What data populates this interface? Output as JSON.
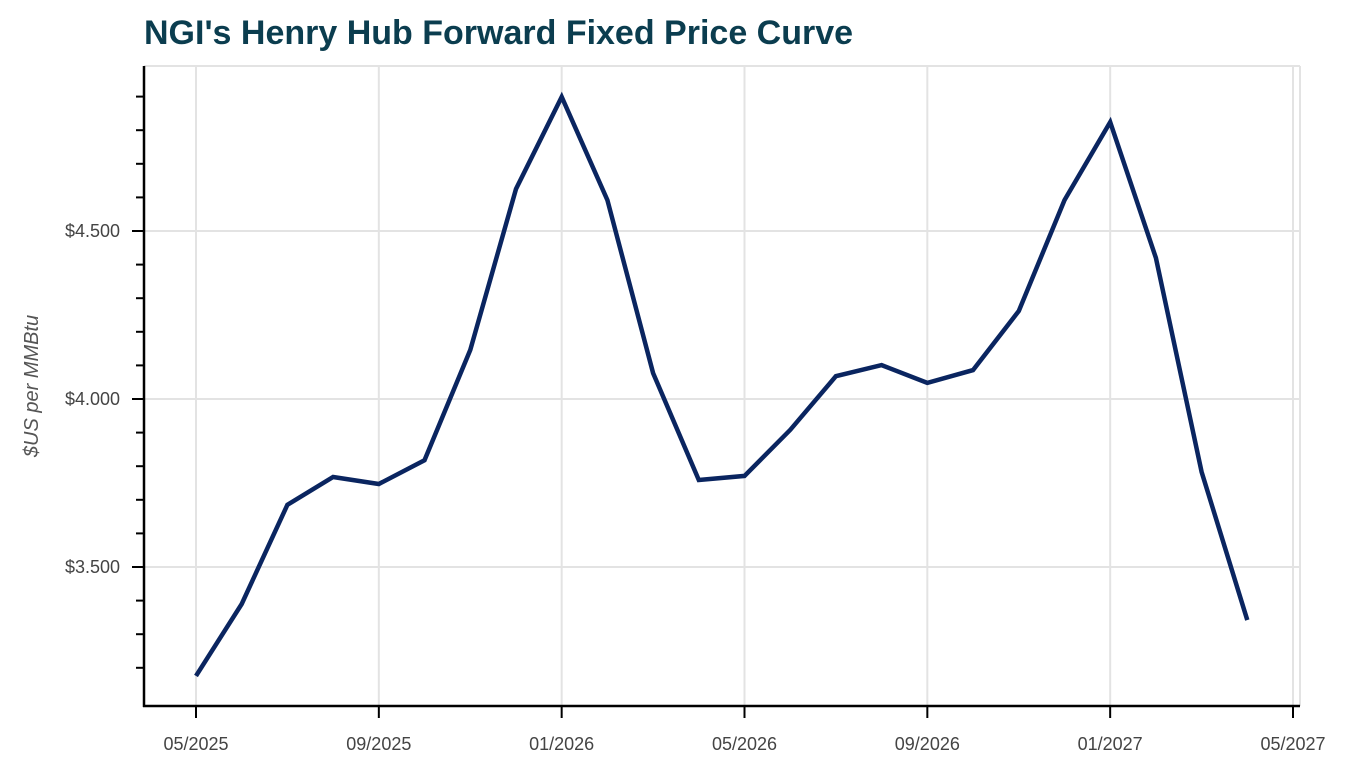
{
  "title": "NGI's Henry Hub Forward Fixed Price Curve",
  "colors": {
    "line": "#0a2560",
    "title": "#0b3d4f",
    "grid": "#e3e3e3",
    "axis": "#000000"
  },
  "chart_data": {
    "type": "line",
    "title": "NGI's Henry Hub Forward Fixed Price Curve",
    "xlabel": "",
    "ylabel": "$US per MMBtu",
    "x_tick_labels": [
      "05/2025",
      "09/2025",
      "01/2026",
      "05/2026",
      "09/2026",
      "01/2027",
      "05/2027"
    ],
    "y_tick_labels": [
      "$3.500",
      "$4.000",
      "$4.500"
    ],
    "y_ticks": [
      3.5,
      4.0,
      4.5
    ],
    "ylim": [
      3.08,
      4.99
    ],
    "grid": true,
    "legend": null,
    "x": [
      "05/2025",
      "06/2025",
      "07/2025",
      "08/2025",
      "09/2025",
      "10/2025",
      "11/2025",
      "12/2025",
      "01/2026",
      "02/2026",
      "03/2026",
      "04/2026",
      "05/2026",
      "06/2026",
      "07/2026",
      "08/2026",
      "09/2026",
      "10/2026",
      "11/2026",
      "12/2026",
      "01/2027",
      "02/2027",
      "03/2027",
      "04/2027"
    ],
    "series": [
      {
        "name": "Henry Hub Forward Fixed Price",
        "values": [
          3.176,
          3.39,
          3.685,
          3.768,
          3.747,
          3.818,
          4.146,
          4.625,
          4.899,
          4.592,
          4.077,
          3.759,
          3.771,
          3.908,
          4.068,
          4.101,
          4.048,
          4.086,
          4.262,
          4.592,
          4.824,
          4.42,
          3.783,
          3.342
        ]
      }
    ]
  }
}
